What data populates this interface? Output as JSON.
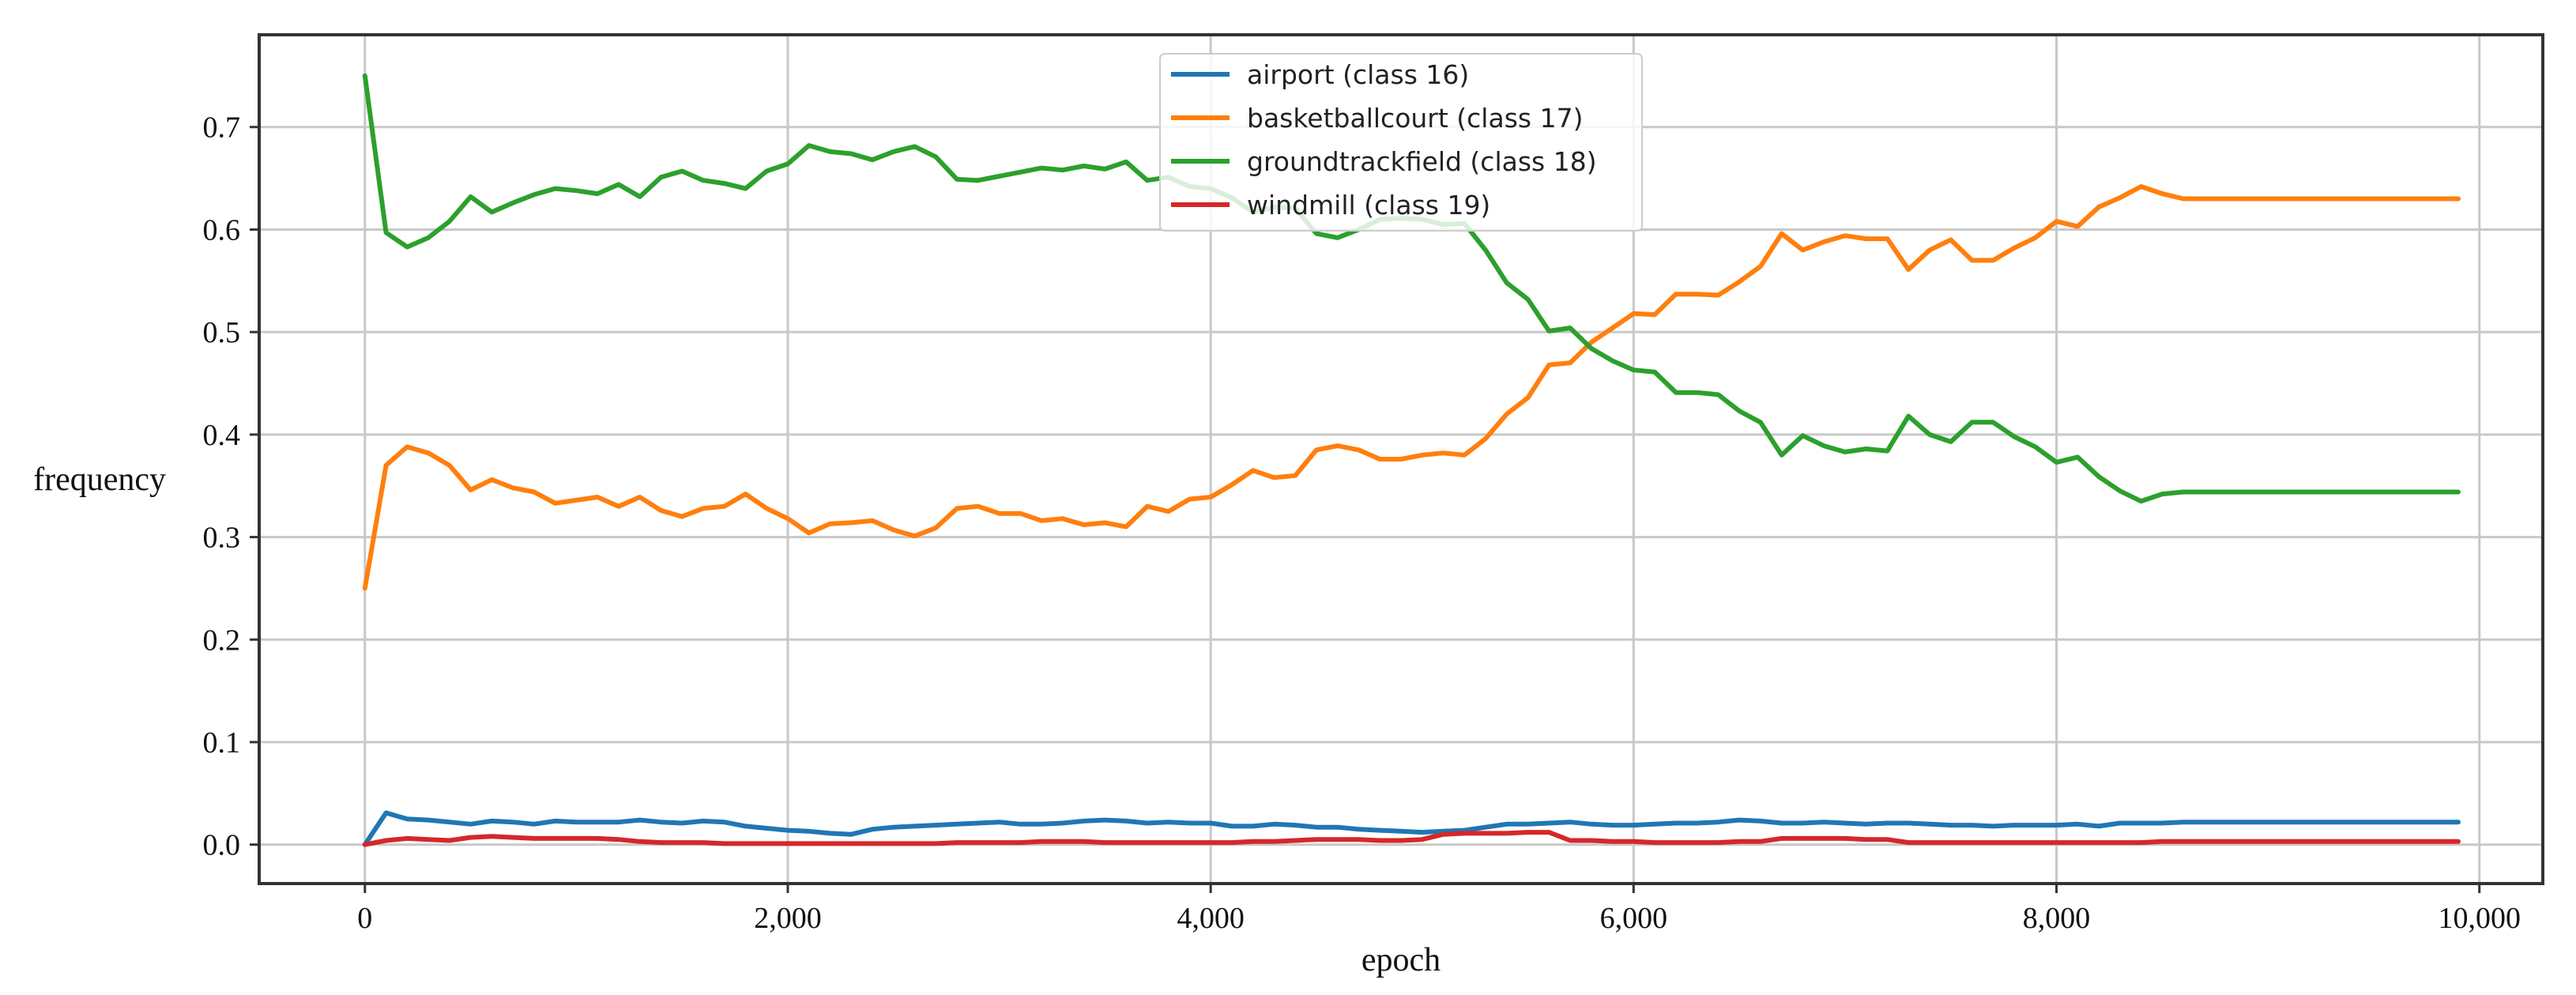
{
  "chart_data": {
    "type": "line",
    "title": "",
    "xlabel": "epoch",
    "ylabel": "frequency",
    "xlim": [
      -500,
      10300
    ],
    "ylim": [
      -0.038,
      0.79
    ],
    "xticks": [
      0,
      2000,
      4000,
      6000,
      8000,
      10000
    ],
    "xtick_labels": [
      "0",
      "2,000",
      "4,000",
      "6,000",
      "8,000",
      "10,000"
    ],
    "yticks": [
      0.0,
      0.1,
      0.2,
      0.3,
      0.4,
      0.5,
      0.6,
      0.7
    ],
    "ytick_labels": [
      "0.0",
      "0.1",
      "0.2",
      "0.3",
      "0.4",
      "0.5",
      "0.6",
      "0.7"
    ],
    "grid": true,
    "legend_position": "top-center",
    "x": [
      0,
      100,
      200,
      300,
      400,
      500,
      600,
      700,
      800,
      900,
      1000,
      1100,
      1200,
      1300,
      1400,
      1500,
      1600,
      1700,
      1800,
      1900,
      2000,
      2100,
      2200,
      2300,
      2400,
      2500,
      2600,
      2700,
      2800,
      2900,
      3000,
      3100,
      3200,
      3300,
      3400,
      3500,
      3600,
      3700,
      3800,
      3900,
      4000,
      4100,
      4200,
      4300,
      4400,
      4500,
      4600,
      4700,
      4800,
      4900,
      5000,
      5100,
      5200,
      5300,
      5400,
      5500,
      5600,
      5700,
      5800,
      5900,
      6000,
      6100,
      6200,
      6300,
      6400,
      6500,
      6600,
      6700,
      6800,
      6900,
      7000,
      7100,
      7200,
      7300,
      7400,
      7500,
      7600,
      7700,
      7800,
      7900,
      8000,
      8100,
      8200,
      8300,
      8400,
      8500,
      8600,
      8700,
      8800,
      8900,
      9000,
      9100,
      9200,
      9300,
      9400,
      9500,
      9600,
      9700,
      9800,
      9900
    ],
    "series": [
      {
        "name": "airport (class 16)",
        "color": "#1f77b4",
        "values": [
          0.0,
          0.031,
          0.025,
          0.024,
          0.022,
          0.02,
          0.023,
          0.022,
          0.02,
          0.023,
          0.022,
          0.022,
          0.022,
          0.024,
          0.022,
          0.021,
          0.023,
          0.022,
          0.018,
          0.016,
          0.014,
          0.013,
          0.011,
          0.01,
          0.015,
          0.017,
          0.018,
          0.019,
          0.02,
          0.021,
          0.022,
          0.02,
          0.02,
          0.021,
          0.023,
          0.024,
          0.023,
          0.021,
          0.022,
          0.021,
          0.021,
          0.018,
          0.018,
          0.02,
          0.019,
          0.017,
          0.017,
          0.015,
          0.014,
          0.013,
          0.012,
          0.013,
          0.014,
          0.017,
          0.02,
          0.02,
          0.021,
          0.022,
          0.02,
          0.019,
          0.019,
          0.02,
          0.021,
          0.021,
          0.022,
          0.024,
          0.023,
          0.021,
          0.021,
          0.022,
          0.021,
          0.02,
          0.021,
          0.021,
          0.02,
          0.019,
          0.019,
          0.018,
          0.019,
          0.019,
          0.019,
          0.02,
          0.018,
          0.021,
          0.021,
          0.021,
          0.022,
          0.022,
          0.022,
          0.022,
          0.022,
          0.022,
          0.022,
          0.022,
          0.022,
          0.022,
          0.022,
          0.022,
          0.022,
          0.022
        ]
      },
      {
        "name": "basketballcourt (class 17)",
        "color": "#ff7f0e",
        "values": [
          0.25,
          0.37,
          0.388,
          0.382,
          0.37,
          0.346,
          0.356,
          0.348,
          0.344,
          0.333,
          0.336,
          0.339,
          0.33,
          0.339,
          0.326,
          0.32,
          0.328,
          0.33,
          0.342,
          0.328,
          0.318,
          0.304,
          0.313,
          0.314,
          0.316,
          0.307,
          0.301,
          0.309,
          0.328,
          0.33,
          0.323,
          0.323,
          0.316,
          0.318,
          0.312,
          0.314,
          0.31,
          0.33,
          0.325,
          0.337,
          0.339,
          0.351,
          0.365,
          0.358,
          0.36,
          0.385,
          0.389,
          0.385,
          0.376,
          0.376,
          0.38,
          0.382,
          0.38,
          0.396,
          0.42,
          0.436,
          0.468,
          0.47,
          0.49,
          0.504,
          0.518,
          0.517,
          0.537,
          0.537,
          0.536,
          0.549,
          0.564,
          0.596,
          0.58,
          0.588,
          0.594,
          0.591,
          0.591,
          0.561,
          0.58,
          0.59,
          0.57,
          0.57,
          0.582,
          0.592,
          0.608,
          0.603,
          0.622,
          0.631,
          0.642,
          0.635,
          0.63,
          0.63,
          0.63,
          0.63,
          0.63,
          0.63,
          0.63,
          0.63,
          0.63,
          0.63,
          0.63,
          0.63,
          0.63,
          0.63
        ]
      },
      {
        "name": "groundtrackfield (class 18)",
        "color": "#2ca02c",
        "values": [
          0.75,
          0.597,
          0.583,
          0.592,
          0.608,
          0.632,
          0.617,
          0.626,
          0.634,
          0.64,
          0.638,
          0.635,
          0.644,
          0.632,
          0.651,
          0.657,
          0.648,
          0.645,
          0.64,
          0.657,
          0.664,
          0.682,
          0.676,
          0.674,
          0.668,
          0.676,
          0.681,
          0.671,
          0.649,
          0.648,
          0.652,
          0.656,
          0.66,
          0.658,
          0.662,
          0.659,
          0.666,
          0.648,
          0.651,
          0.642,
          0.64,
          0.631,
          0.617,
          0.622,
          0.621,
          0.596,
          0.592,
          0.6,
          0.61,
          0.611,
          0.61,
          0.605,
          0.606,
          0.58,
          0.548,
          0.532,
          0.501,
          0.504,
          0.484,
          0.472,
          0.463,
          0.461,
          0.441,
          0.441,
          0.439,
          0.423,
          0.412,
          0.38,
          0.399,
          0.389,
          0.383,
          0.386,
          0.384,
          0.418,
          0.4,
          0.393,
          0.412,
          0.412,
          0.398,
          0.388,
          0.373,
          0.378,
          0.359,
          0.345,
          0.335,
          0.342,
          0.344,
          0.344,
          0.344,
          0.344,
          0.344,
          0.344,
          0.344,
          0.344,
          0.344,
          0.344,
          0.344,
          0.344,
          0.344,
          0.344
        ]
      },
      {
        "name": "windmill (class 19)",
        "color": "#d62728",
        "values": [
          0.0,
          0.004,
          0.006,
          0.005,
          0.004,
          0.007,
          0.008,
          0.007,
          0.006,
          0.006,
          0.006,
          0.006,
          0.005,
          0.003,
          0.002,
          0.002,
          0.002,
          0.001,
          0.001,
          0.001,
          0.001,
          0.001,
          0.001,
          0.001,
          0.001,
          0.001,
          0.001,
          0.001,
          0.002,
          0.002,
          0.002,
          0.002,
          0.003,
          0.003,
          0.003,
          0.002,
          0.002,
          0.002,
          0.002,
          0.002,
          0.002,
          0.002,
          0.003,
          0.003,
          0.004,
          0.005,
          0.005,
          0.005,
          0.004,
          0.004,
          0.005,
          0.01,
          0.011,
          0.011,
          0.011,
          0.012,
          0.012,
          0.004,
          0.004,
          0.003,
          0.003,
          0.002,
          0.002,
          0.002,
          0.002,
          0.003,
          0.003,
          0.006,
          0.006,
          0.006,
          0.006,
          0.005,
          0.005,
          0.002,
          0.002,
          0.002,
          0.002,
          0.002,
          0.002,
          0.002,
          0.002,
          0.002,
          0.002,
          0.002,
          0.002,
          0.003,
          0.003,
          0.003,
          0.003,
          0.003,
          0.003,
          0.003,
          0.003,
          0.003,
          0.003,
          0.003,
          0.003,
          0.003,
          0.003,
          0.003
        ]
      }
    ]
  }
}
